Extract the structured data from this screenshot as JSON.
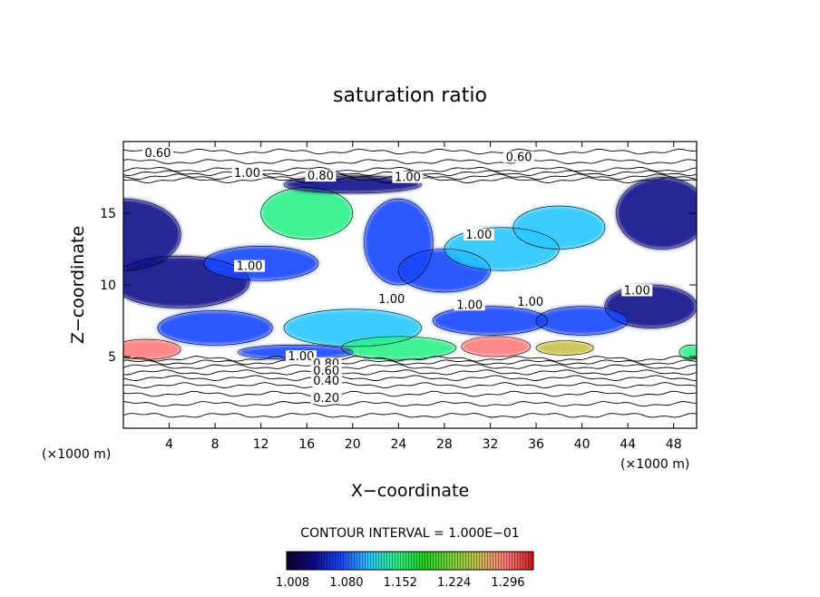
{
  "chart_data": {
    "type": "heatmap",
    "title": "saturation ratio",
    "xlabel": "X−coordinate",
    "ylabel": "Z−coordinate",
    "x_unit_left": "(×1000 m)",
    "x_unit_right": "(×1000 m)",
    "xlim": [
      0,
      50
    ],
    "ylim": [
      0,
      20
    ],
    "x_ticks": [
      4,
      8,
      12,
      16,
      20,
      24,
      28,
      32,
      36,
      40,
      44,
      48
    ],
    "y_ticks": [
      5,
      10,
      15
    ],
    "contour_interval_text": "CONTOUR INTERVAL = 1.000E−01",
    "colorbar": {
      "range": [
        1.0,
        1.33
      ],
      "tick_values": [
        1.008,
        1.08,
        1.152,
        1.224,
        1.296
      ],
      "tick_labels": [
        "1.008",
        "1.080",
        "1.152",
        "1.224",
        "1.296"
      ],
      "colors": [
        "#12002a",
        "#0c0c8a",
        "#1a46ff",
        "#29c6ff",
        "#2ff08a",
        "#1bd21b",
        "#7ad23a",
        "#c8c04a",
        "#ff7a7a",
        "#c82020"
      ]
    },
    "contour_labels": [
      {
        "text": "0.60",
        "x": 3.0,
        "z": 19.0
      },
      {
        "text": "0.60",
        "x": 34.5,
        "z": 18.7
      },
      {
        "text": "1.00",
        "x": 10.8,
        "z": 17.6
      },
      {
        "text": "0.80",
        "x": 17.2,
        "z": 17.4
      },
      {
        "text": "1.00",
        "x": 24.8,
        "z": 17.3
      },
      {
        "text": "1.00",
        "x": 31.0,
        "z": 13.3
      },
      {
        "text": "1.00",
        "x": 11.0,
        "z": 11.1
      },
      {
        "text": "1.00",
        "x": 23.4,
        "z": 8.8
      },
      {
        "text": "1.00",
        "x": 30.2,
        "z": 8.4
      },
      {
        "text": "1.00",
        "x": 35.5,
        "z": 8.6
      },
      {
        "text": "1.00",
        "x": 44.8,
        "z": 9.4
      },
      {
        "text": "1.00",
        "x": 15.5,
        "z": 4.8
      },
      {
        "text": "0.80",
        "x": 17.7,
        "z": 4.3
      },
      {
        "text": "0.60",
        "x": 17.7,
        "z": 3.8
      },
      {
        "text": "0.40",
        "x": 17.7,
        "z": 3.1
      },
      {
        "text": "0.20",
        "x": 17.7,
        "z": 1.9
      }
    ],
    "iso_lines_z": [
      0.9,
      1.7,
      2.4,
      3.0,
      3.5,
      3.9,
      4.3,
      4.6,
      4.85,
      17.3,
      17.55,
      17.8,
      18.05,
      18.6,
      19.3
    ],
    "regions": [
      {
        "x": 0,
        "z": 13.5,
        "rx": 5,
        "rz": 2.5,
        "level": 1.02
      },
      {
        "x": 5,
        "z": 10.2,
        "rx": 6,
        "rz": 1.8,
        "level": 1.04
      },
      {
        "x": 12,
        "z": 11.5,
        "rx": 5,
        "rz": 1.2,
        "level": 1.06
      },
      {
        "x": 16,
        "z": 15.0,
        "rx": 4,
        "rz": 1.8,
        "level": 1.14
      },
      {
        "x": 20,
        "z": 17.0,
        "rx": 6,
        "rz": 0.6,
        "level": 1.04
      },
      {
        "x": 24,
        "z": 13.0,
        "rx": 3,
        "rz": 3.0,
        "level": 1.08
      },
      {
        "x": 28,
        "z": 11.0,
        "rx": 4,
        "rz": 1.5,
        "level": 1.06
      },
      {
        "x": 33,
        "z": 12.5,
        "rx": 5,
        "rz": 1.5,
        "level": 1.1
      },
      {
        "x": 38,
        "z": 14.0,
        "rx": 4,
        "rz": 1.5,
        "level": 1.12
      },
      {
        "x": 47,
        "z": 15.0,
        "rx": 4,
        "rz": 2.5,
        "level": 1.02
      },
      {
        "x": 46,
        "z": 8.5,
        "rx": 4,
        "rz": 1.5,
        "level": 1.02
      },
      {
        "x": 8,
        "z": 7.0,
        "rx": 5,
        "rz": 1.2,
        "level": 1.06
      },
      {
        "x": 20,
        "z": 7.0,
        "rx": 6,
        "rz": 1.3,
        "level": 1.1
      },
      {
        "x": 32,
        "z": 7.5,
        "rx": 5,
        "rz": 1.0,
        "level": 1.08
      },
      {
        "x": 40,
        "z": 7.5,
        "rx": 4,
        "rz": 1.0,
        "level": 1.06
      },
      {
        "x": 24,
        "z": 5.6,
        "rx": 5,
        "rz": 0.8,
        "level": 1.16
      },
      {
        "x": 15,
        "z": 5.3,
        "rx": 5,
        "rz": 0.5,
        "level": 1.06
      },
      {
        "x": 2,
        "z": 5.5,
        "rx": 3,
        "rz": 0.7,
        "level": 1.3
      },
      {
        "x": 32.5,
        "z": 5.7,
        "rx": 3,
        "rz": 0.7,
        "level": 1.31
      },
      {
        "x": 38.5,
        "z": 5.6,
        "rx": 2.5,
        "rz": 0.5,
        "level": 1.27
      },
      {
        "x": 49.5,
        "z": 5.3,
        "rx": 1,
        "rz": 0.5,
        "level": 1.16
      }
    ]
  }
}
